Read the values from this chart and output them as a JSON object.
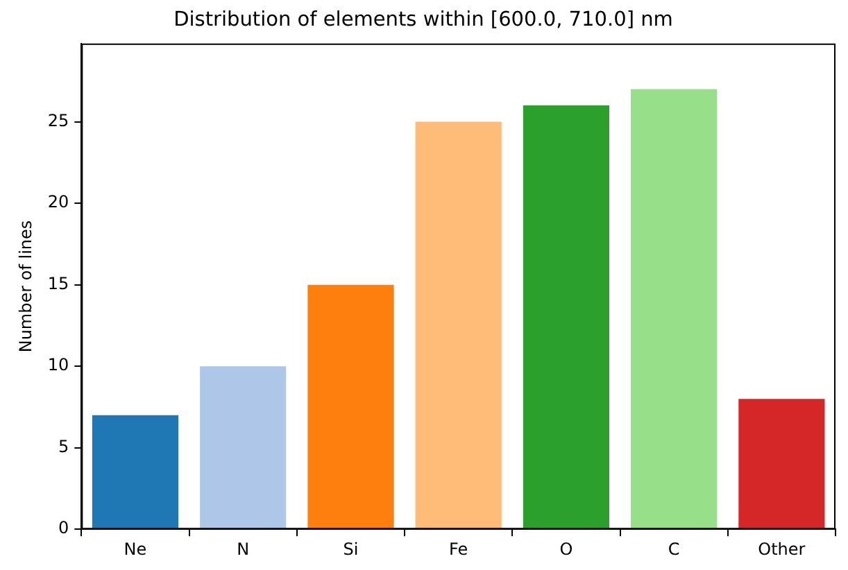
{
  "chart_data": {
    "type": "bar",
    "title": "Distribution of elements within [600.0, 710.0] nm",
    "ylabel": "Number of lines",
    "categories": [
      "Ne",
      "N",
      "Si",
      "Fe",
      "O",
      "C",
      "Other"
    ],
    "values": [
      7,
      10,
      15,
      25,
      26,
      27,
      8
    ],
    "colors": [
      "#1f77b4",
      "#aec7e8",
      "#ff7f0e",
      "#ffbb78",
      "#2ca02c",
      "#98df8a",
      "#d62728"
    ],
    "ylim": [
      0,
      29.8
    ],
    "yticks": [
      0,
      5,
      10,
      15,
      20,
      25
    ],
    "grid": false,
    "legend": false
  }
}
